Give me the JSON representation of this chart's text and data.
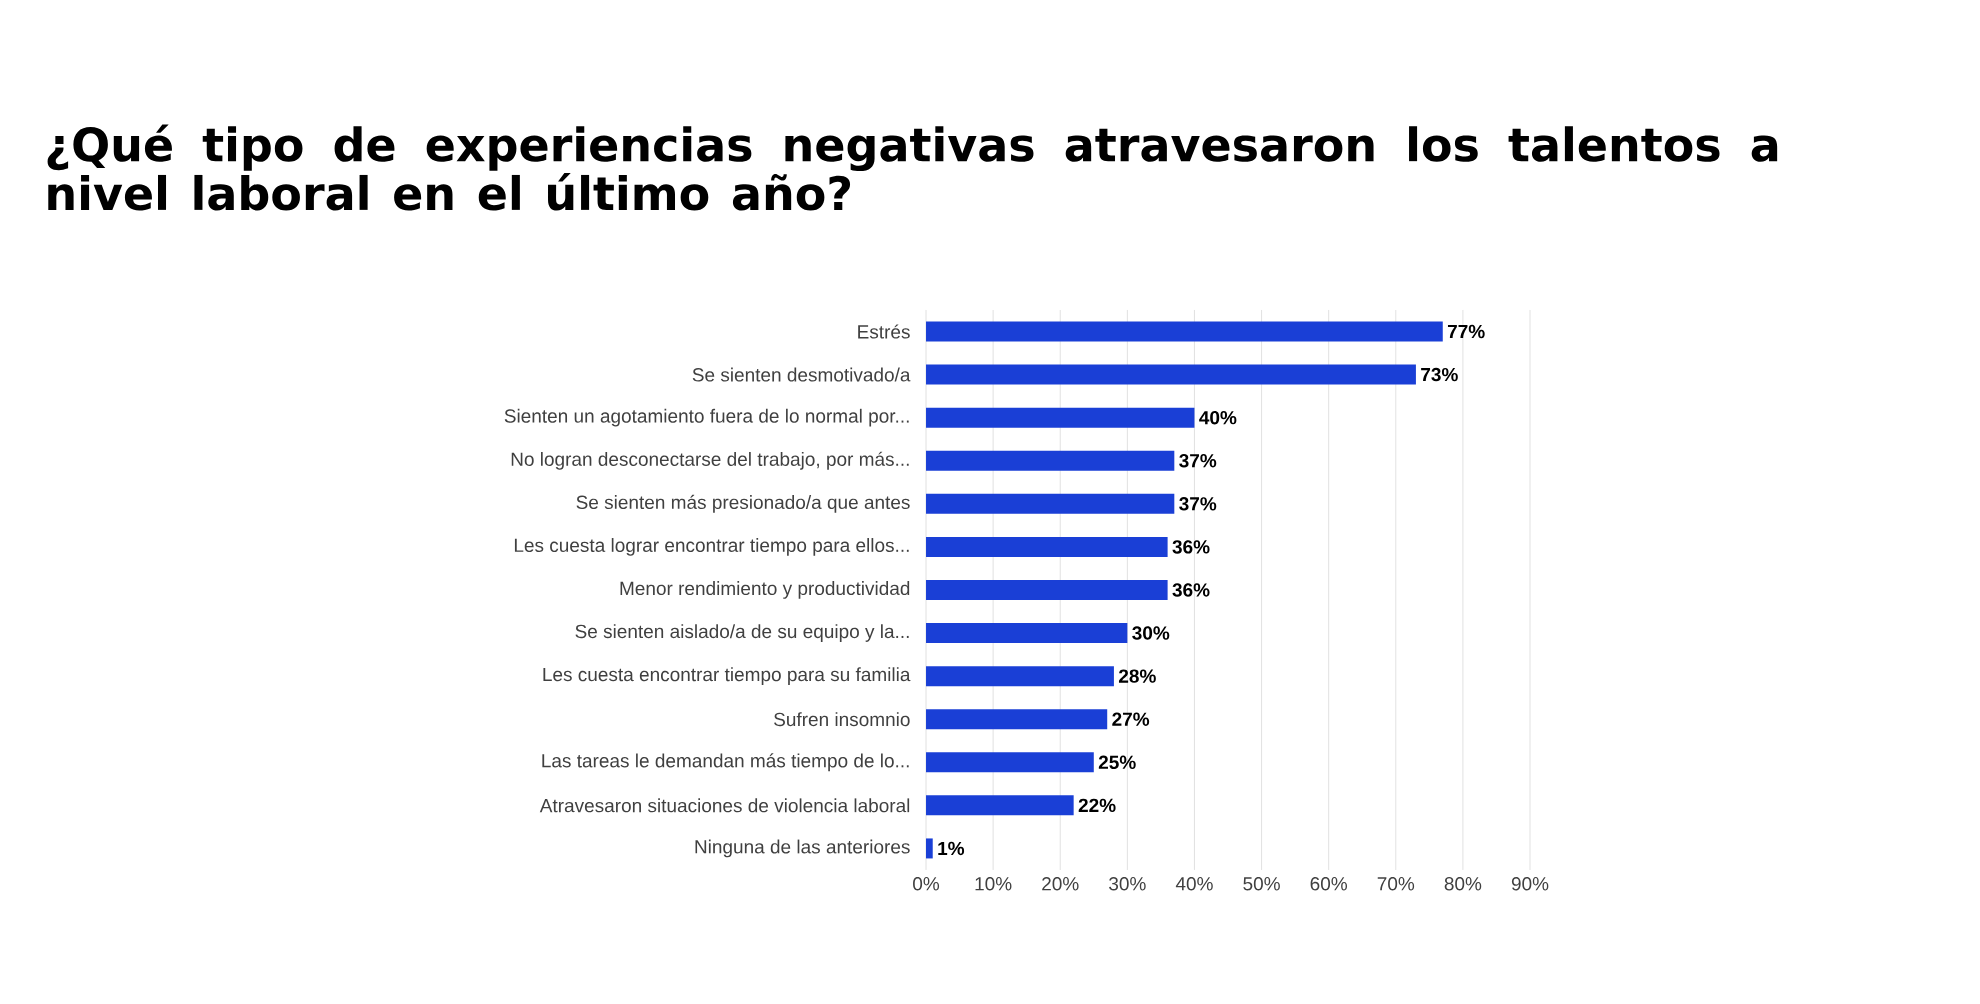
{
  "chart_data": {
    "type": "bar",
    "orientation": "horizontal",
    "title": "¿Qué tipo de experiencias negativas atravesaron los talentos a nivel laboral en el último año?",
    "categories": [
      "Estrés",
      "Se sienten desmotivado/a",
      "Sienten un agotamiento fuera de lo normal por...",
      "No logran desconectarse del trabajo, por más...",
      "Se sienten más presionado/a que antes",
      "Les cuesta lograr encontrar tiempo para ellos...",
      "Menor rendimiento y productividad",
      "Se sienten aislado/a de su equipo y la...",
      "Les cuesta encontrar tiempo para su familia",
      "Sufren insomnio",
      "Las tareas le demandan más tiempo de lo...",
      "Atravesaron situaciones de violencia laboral",
      "Ninguna de las anteriores"
    ],
    "values": [
      77,
      73,
      40,
      37,
      37,
      36,
      36,
      30,
      28,
      27,
      25,
      22,
      1
    ],
    "value_labels": [
      "77%",
      "73%",
      "40%",
      "37%",
      "37%",
      "36%",
      "36%",
      "30%",
      "28%",
      "27%",
      "25%",
      "22%",
      "1%"
    ],
    "color": "#1a3fd6",
    "xlim": [
      0,
      90
    ],
    "xticks": [
      {
        "value": 0,
        "label": "0%"
      },
      {
        "value": 10,
        "label": "10%"
      },
      {
        "value": 20,
        "label": "20%"
      },
      {
        "value": 30,
        "label": "30%"
      },
      {
        "value": 40,
        "label": "40%"
      },
      {
        "value": 50,
        "label": "50%"
      },
      {
        "value": 60,
        "label": "60%"
      },
      {
        "value": 70,
        "label": "70%"
      },
      {
        "value": 80,
        "label": "80%"
      },
      {
        "value": 90,
        "label": "90%"
      }
    ],
    "grid": "x"
  }
}
